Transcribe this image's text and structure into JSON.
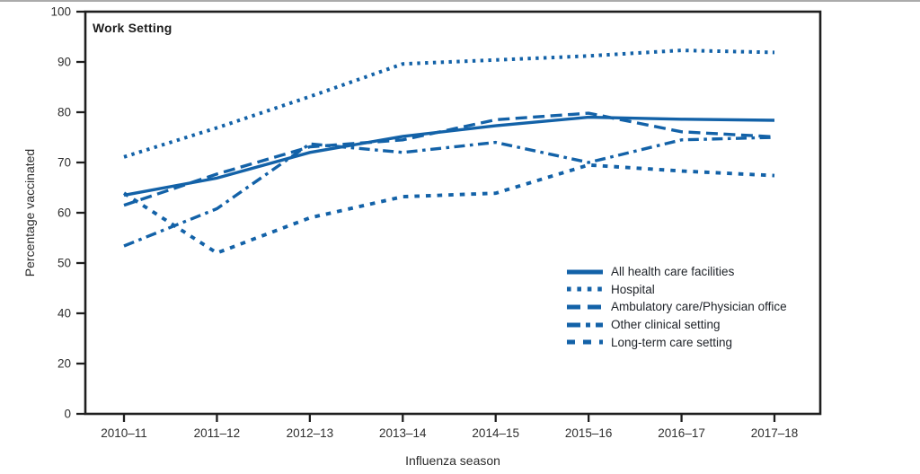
{
  "chart_data": {
    "type": "line",
    "title": "Work Setting",
    "xlabel": "Influenza season",
    "ylabel": "Percentage vaccinated",
    "categories": [
      "2010–11",
      "2011–12",
      "2012–13",
      "2013–14",
      "2014–15",
      "2015–16",
      "2016–17",
      "2017–18"
    ],
    "y_ticks": [
      0,
      20,
      40,
      50,
      60,
      70,
      80,
      90,
      100
    ],
    "grid": false,
    "legend_position": "inside-right",
    "line_color": "#1362a8",
    "series": [
      {
        "name": "Hospital",
        "dash": "dotted",
        "values": [
          71.1,
          76.9,
          83.1,
          89.6,
          90.4,
          91.2,
          92.3,
          91.9
        ]
      },
      {
        "name": "Long-term care setting",
        "dash": "short-dash",
        "values": [
          63.9,
          52.0,
          59.0,
          63.2,
          63.9,
          69.5,
          68.3,
          67.4
        ]
      },
      {
        "name": "Other clinical setting",
        "dash": "dash-dot",
        "values": [
          53.4,
          60.8,
          73.7,
          72.0,
          74.0,
          70.0,
          74.5,
          75.0
        ]
      },
      {
        "name": "Ambulatory care/Physician office",
        "dash": "dashed",
        "values": [
          61.5,
          67.7,
          73.1,
          74.5,
          78.5,
          79.8,
          76.1,
          75.1
        ]
      },
      {
        "name": "All health care facilities",
        "dash": "solid",
        "values": [
          63.5,
          66.9,
          72.0,
          75.2,
          77.3,
          79.0,
          78.6,
          78.4
        ]
      }
    ],
    "legend_order": [
      "All health care facilities",
      "Hospital",
      "Ambulatory care/Physician office",
      "Other clinical setting",
      "Long-term care setting"
    ]
  }
}
